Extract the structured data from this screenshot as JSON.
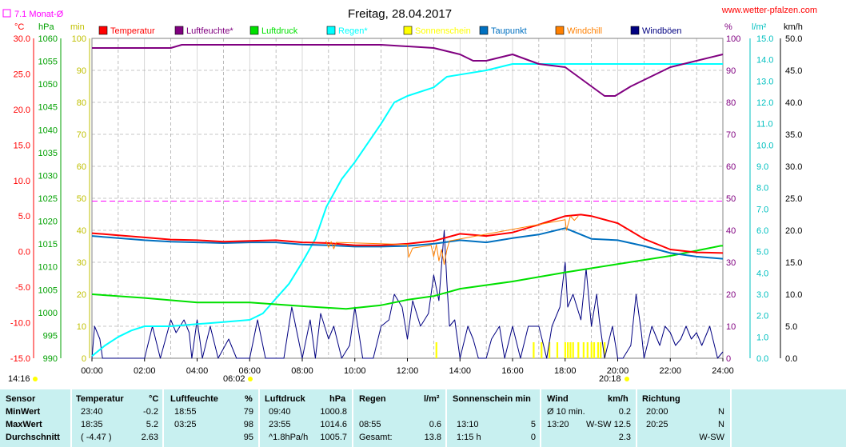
{
  "page": {
    "title": "Freitag, 28.04.2017",
    "site": "www.wetter-pfalzen.com",
    "monthly_avg_label": "7.1 Monat-Ø",
    "sunrise": "06:02",
    "sunset": "20:18",
    "day_start": "14:16"
  },
  "axis_units": {
    "temp": "°C",
    "pressure": "hPa",
    "minutes": "min",
    "humidity": "%",
    "rain": "l/m²",
    "wind": "km/h"
  },
  "legend": [
    {
      "label": "Temperatur",
      "color": "#ff0000"
    },
    {
      "label": "Luftfeuchte*",
      "color": "#800080"
    },
    {
      "label": "Luftdruck",
      "color": "#00e000"
    },
    {
      "label": "Regen*",
      "color": "#00ffff"
    },
    {
      "label": "Sonnenschein",
      "color": "#ffff00"
    },
    {
      "label": "Taupunkt",
      "color": "#0070c0"
    },
    {
      "label": "Windchill",
      "color": "#ff8000"
    },
    {
      "label": "Windböen",
      "color": "#000080"
    }
  ],
  "chart_data": {
    "type": "line",
    "title": "Freitag, 28.04.2017",
    "x_ticks": [
      "00:00",
      "02:00",
      "04:00",
      "06:00",
      "08:00",
      "10:00",
      "12:00",
      "14:00",
      "16:00",
      "18:00",
      "20:00",
      "22:00",
      "24:00"
    ],
    "xlim": [
      0,
      24
    ],
    "axes": {
      "temp_c": {
        "range": [
          -15,
          30
        ],
        "ticks": [
          "30.0",
          "25.0",
          "20.0",
          "15.0",
          "10.0",
          "5.0",
          "0.0",
          "-5.0",
          "-10.0",
          "-15.0"
        ]
      },
      "pressure_hpa": {
        "range": [
          990,
          1060
        ],
        "ticks": [
          "1060",
          "1055",
          "1050",
          "1045",
          "1040",
          "1035",
          "1030",
          "1025",
          "1020",
          "1015",
          "1010",
          "1005",
          "1000",
          "995",
          "990"
        ]
      },
      "sun_min": {
        "range": [
          0,
          100
        ],
        "ticks": [
          "100",
          "90",
          "80",
          "70",
          "60",
          "50",
          "40",
          "30",
          "20",
          "10",
          "0"
        ]
      },
      "humidity_pct": {
        "range": [
          0,
          100
        ],
        "ticks": [
          "100",
          "90",
          "80",
          "70",
          "60",
          "50",
          "40",
          "30",
          "20",
          "10",
          "0"
        ]
      },
      "rain_lm2": {
        "range": [
          0,
          15
        ],
        "ticks": [
          "15.0",
          "14.0",
          "13.0",
          "12.0",
          "11.0",
          "10.0",
          "9.0",
          "8.0",
          "7.0",
          "6.0",
          "5.0",
          "4.0",
          "3.0",
          "2.0",
          "1.0",
          "0.0"
        ]
      },
      "wind_kmh": {
        "range": [
          0,
          50
        ],
        "ticks": [
          "50.0",
          "45.0",
          "40.0",
          "35.0",
          "30.0",
          "25.0",
          "20.0",
          "15.0",
          "10.0",
          "5.0",
          "0.0"
        ]
      }
    },
    "monthly_avg_temp": 7.1,
    "series": [
      {
        "name": "Temperatur",
        "axis": "temp_c",
        "color": "#ff0000",
        "points": [
          [
            0,
            2.6
          ],
          [
            1,
            2.3
          ],
          [
            2,
            2.0
          ],
          [
            3,
            1.7
          ],
          [
            4,
            1.6
          ],
          [
            5,
            1.4
          ],
          [
            6,
            1.5
          ],
          [
            7,
            1.6
          ],
          [
            8,
            1.3
          ],
          [
            9,
            1.2
          ],
          [
            10,
            0.9
          ],
          [
            11,
            0.9
          ],
          [
            12,
            1.1
          ],
          [
            13,
            1.5
          ],
          [
            14,
            2.5
          ],
          [
            15,
            2.2
          ],
          [
            16,
            2.7
          ],
          [
            17,
            3.8
          ],
          [
            18,
            5.0
          ],
          [
            18.6,
            5.2
          ],
          [
            19,
            5.0
          ],
          [
            20,
            4.0
          ],
          [
            21,
            1.8
          ],
          [
            22,
            0.3
          ],
          [
            23,
            -0.1
          ],
          [
            24,
            -0.2
          ]
        ]
      },
      {
        "name": "Luftfeuchte*",
        "axis": "humidity_pct",
        "color": "#800080",
        "points": [
          [
            0,
            97
          ],
          [
            1,
            97
          ],
          [
            2,
            97
          ],
          [
            3,
            97
          ],
          [
            3.42,
            98
          ],
          [
            5,
            98
          ],
          [
            7,
            98
          ],
          [
            9,
            98
          ],
          [
            11,
            98
          ],
          [
            13,
            97
          ],
          [
            14,
            95
          ],
          [
            14.5,
            93
          ],
          [
            15,
            93
          ],
          [
            16,
            95
          ],
          [
            17,
            92
          ],
          [
            18,
            91
          ],
          [
            19,
            85
          ],
          [
            19.5,
            82
          ],
          [
            19.9,
            82
          ],
          [
            20.5,
            85
          ],
          [
            21,
            87
          ],
          [
            22,
            91
          ],
          [
            23,
            93
          ],
          [
            24,
            95
          ]
        ]
      },
      {
        "name": "Luftdruck",
        "axis": "pressure_hpa",
        "color": "#00e000",
        "points": [
          [
            0,
            1004
          ],
          [
            2,
            1003.2
          ],
          [
            4,
            1002.2
          ],
          [
            6,
            1002.2
          ],
          [
            8,
            1001.4
          ],
          [
            9.67,
            1000.8
          ],
          [
            11,
            1001.6
          ],
          [
            12,
            1002.8
          ],
          [
            13,
            1003.6
          ],
          [
            14,
            1005.2
          ],
          [
            16,
            1006.8
          ],
          [
            18,
            1008.8
          ],
          [
            20,
            1010.6
          ],
          [
            22,
            1012.4
          ],
          [
            23.92,
            1014.6
          ],
          [
            24,
            1014.6
          ]
        ]
      },
      {
        "name": "Regen*",
        "axis": "rain_lm2",
        "color": "#00ffff",
        "points": [
          [
            0,
            0.1
          ],
          [
            0.5,
            0.6
          ],
          [
            1,
            1.0
          ],
          [
            1.5,
            1.3
          ],
          [
            2,
            1.5
          ],
          [
            3,
            1.5
          ],
          [
            4,
            1.6
          ],
          [
            5,
            1.7
          ],
          [
            6,
            1.8
          ],
          [
            6.5,
            2.1
          ],
          [
            7,
            2.8
          ],
          [
            7.5,
            3.5
          ],
          [
            8,
            4.5
          ],
          [
            8.5,
            5.6
          ],
          [
            8.92,
            7.1
          ],
          [
            9.5,
            8.4
          ],
          [
            10,
            9.2
          ],
          [
            11,
            11.0
          ],
          [
            11.5,
            12.0
          ],
          [
            12,
            12.3
          ],
          [
            13,
            12.7
          ],
          [
            13.5,
            13.2
          ],
          [
            14,
            13.3
          ],
          [
            15,
            13.5
          ],
          [
            16,
            13.8
          ],
          [
            24,
            13.8
          ]
        ]
      },
      {
        "name": "Taupunkt",
        "axis": "temp_c",
        "color": "#0070c0",
        "points": [
          [
            0,
            2.2
          ],
          [
            1,
            1.9
          ],
          [
            2,
            1.6
          ],
          [
            3,
            1.4
          ],
          [
            4,
            1.3
          ],
          [
            5,
            1.2
          ],
          [
            6,
            1.3
          ],
          [
            7,
            1.3
          ],
          [
            8,
            1.0
          ],
          [
            9,
            0.9
          ],
          [
            10,
            0.7
          ],
          [
            11,
            0.7
          ],
          [
            12,
            0.8
          ],
          [
            13,
            1.1
          ],
          [
            14,
            1.6
          ],
          [
            15,
            1.3
          ],
          [
            16,
            1.9
          ],
          [
            17,
            2.4
          ],
          [
            18,
            3.3
          ],
          [
            19,
            1.8
          ],
          [
            20,
            1.6
          ],
          [
            21,
            0.8
          ],
          [
            22,
            -0.2
          ],
          [
            23,
            -0.7
          ],
          [
            24,
            -1.0
          ]
        ]
      },
      {
        "name": "Windchill",
        "axis": "temp_c",
        "color": "#ff8000",
        "points": [
          [
            8.9,
            1.5
          ],
          [
            9.0,
            0.6
          ],
          [
            9.1,
            1.4
          ],
          [
            9.2,
            0.4
          ],
          [
            9.3,
            1.3
          ],
          [
            12,
            1.0
          ],
          [
            12.05,
            -0.8
          ],
          [
            12.2,
            0.5
          ],
          [
            12.9,
            0.9
          ],
          [
            13.0,
            -0.7
          ],
          [
            13.1,
            1.0
          ],
          [
            13.2,
            -1.3
          ],
          [
            13.3,
            0.3
          ],
          [
            13.4,
            -1.8
          ],
          [
            13.5,
            0.2
          ],
          [
            13.6,
            1.5
          ],
          [
            18.0,
            4.5
          ],
          [
            18.05,
            3.0
          ],
          [
            18.2,
            5.0
          ],
          [
            18.35,
            4.4
          ],
          [
            18.5,
            5.0
          ]
        ]
      },
      {
        "name": "Windböen",
        "axis": "wind_kmh",
        "color": "#000080",
        "points": [
          [
            0,
            0
          ],
          [
            0.1,
            5
          ],
          [
            0.3,
            3
          ],
          [
            0.4,
            0
          ],
          [
            1,
            0
          ],
          [
            1.5,
            0
          ],
          [
            2,
            0
          ],
          [
            2.3,
            5
          ],
          [
            2.6,
            0
          ],
          [
            3,
            6
          ],
          [
            3.2,
            4
          ],
          [
            3.5,
            6
          ],
          [
            3.7,
            4
          ],
          [
            3.8,
            0
          ],
          [
            4,
            6
          ],
          [
            4.2,
            0
          ],
          [
            4.5,
            5
          ],
          [
            4.8,
            0
          ],
          [
            5.2,
            3
          ],
          [
            5.5,
            0
          ],
          [
            6,
            0
          ],
          [
            6.3,
            6
          ],
          [
            6.6,
            0
          ],
          [
            7,
            0
          ],
          [
            7.3,
            0
          ],
          [
            7.6,
            8
          ],
          [
            8,
            0
          ],
          [
            8.3,
            6
          ],
          [
            8.5,
            0
          ],
          [
            8.7,
            7
          ],
          [
            9,
            3
          ],
          [
            9.2,
            5
          ],
          [
            9.5,
            0
          ],
          [
            9.8,
            2
          ],
          [
            10,
            8
          ],
          [
            10.3,
            0
          ],
          [
            10.7,
            0
          ],
          [
            11,
            5
          ],
          [
            11.3,
            6
          ],
          [
            11.5,
            10
          ],
          [
            11.8,
            8
          ],
          [
            12,
            3
          ],
          [
            12.2,
            9
          ],
          [
            12.5,
            5
          ],
          [
            12.8,
            7
          ],
          [
            13,
            13
          ],
          [
            13.2,
            9
          ],
          [
            13.4,
            20
          ],
          [
            13.5,
            12
          ],
          [
            13.6,
            5
          ],
          [
            13.8,
            6
          ],
          [
            14,
            0
          ],
          [
            14.3,
            5
          ],
          [
            14.5,
            3
          ],
          [
            14.7,
            0
          ],
          [
            15,
            0
          ],
          [
            15.2,
            3
          ],
          [
            15.5,
            5
          ],
          [
            15.7,
            0
          ],
          [
            16,
            5
          ],
          [
            16.3,
            0
          ],
          [
            16.6,
            5
          ],
          [
            17,
            5
          ],
          [
            17.3,
            0
          ],
          [
            17.5,
            5
          ],
          [
            17.8,
            8
          ],
          [
            18,
            15
          ],
          [
            18.1,
            8
          ],
          [
            18.3,
            10
          ],
          [
            18.6,
            6
          ],
          [
            18.8,
            14
          ],
          [
            19,
            5
          ],
          [
            19.2,
            10
          ],
          [
            19.3,
            6
          ],
          [
            19.5,
            0
          ],
          [
            19.8,
            5
          ],
          [
            20,
            0
          ],
          [
            20.2,
            0
          ],
          [
            20.5,
            2
          ],
          [
            20.7,
            10
          ],
          [
            20.9,
            4
          ],
          [
            21,
            0
          ],
          [
            21.3,
            5
          ],
          [
            21.6,
            2
          ],
          [
            21.8,
            5
          ],
          [
            22,
            4
          ],
          [
            22.2,
            2
          ],
          [
            22.4,
            3
          ],
          [
            22.6,
            5
          ],
          [
            22.8,
            3
          ],
          [
            23,
            4
          ],
          [
            23.2,
            2
          ],
          [
            23.5,
            5
          ],
          [
            23.8,
            0
          ],
          [
            24,
            1
          ]
        ]
      }
    ],
    "sunshine_bars": {
      "axis": "sun_min",
      "color": "#ffff00",
      "times": [
        13.1,
        16.8,
        17.1,
        17.4,
        17.7,
        18.0,
        18.1,
        18.2,
        18.3,
        18.5,
        18.7,
        18.85,
        19.0,
        19.1,
        19.25,
        19.35,
        19.5
      ]
    }
  },
  "table": {
    "headers": {
      "sensor": "Sensor",
      "temp": "Temperatur",
      "temp_unit": "°C",
      "hum": "Luftfeuchte",
      "hum_unit": "%",
      "press": "Luftdruck",
      "press_unit": "hPa",
      "rain": "Regen",
      "rain_unit": "l/m²",
      "sun": "Sonnenschein min",
      "wind": "Wind",
      "wind_unit": "km/h",
      "dir": "Richtung"
    },
    "rows": [
      {
        "label": "MinWert",
        "temp_t": "23:40",
        "temp_v": "-0.2",
        "hum_t": "18:55",
        "hum_v": "79",
        "press_t": "09:40",
        "press_v": "1000.8",
        "rain_t": "",
        "rain_v": "",
        "sun_t": "",
        "sun_v": "",
        "wind_t": "Ø 10 min.",
        "wind_mid": "",
        "wind_v": "0.2",
        "dir_t": "20:00",
        "dir_v": "N"
      },
      {
        "label": "MaxWert",
        "temp_t": "18:35",
        "temp_v": "5.2",
        "hum_t": "03:25",
        "hum_v": "98",
        "press_t": "23:55",
        "press_v": "1014.6",
        "rain_t": "08:55",
        "rain_v": "0.6",
        "sun_t": "13:10",
        "sun_v": "5",
        "wind_t": "13:20",
        "wind_mid": "W-SW",
        "wind_v": "12.5",
        "dir_t": "20:25",
        "dir_v": "N"
      },
      {
        "label": "Durchschnitt",
        "temp_t": "( -4.47 )",
        "temp_v": "2.63",
        "hum_t": "",
        "hum_v": "95",
        "press_t": "^1.8hPa/h",
        "press_v": "1005.7",
        "rain_t": "Gesamt:",
        "rain_v": "13.8",
        "sun_t": "1:15 h",
        "sun_v": "0",
        "wind_t": "",
        "wind_mid": "",
        "wind_v": "2.3",
        "dir_t": "",
        "dir_v": "W-SW"
      }
    ]
  }
}
